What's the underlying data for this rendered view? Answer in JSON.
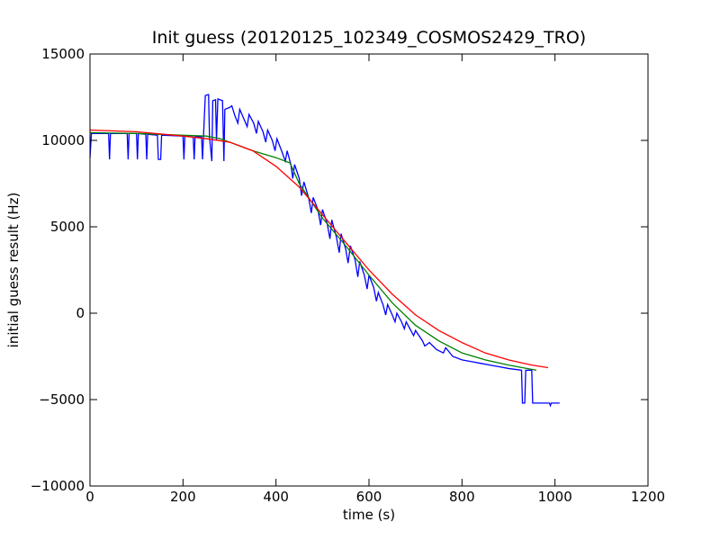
{
  "chart_data": {
    "type": "line",
    "title": "Init guess (20120125_102349_COSMOS2429_TRO)",
    "xlabel": "time (s)",
    "ylabel": "initial guess result (Hz)",
    "xlim": [
      0,
      1200
    ],
    "ylim": [
      -10000,
      15000
    ],
    "xticks": [
      0,
      200,
      400,
      600,
      800,
      1000,
      1200
    ],
    "yticks": [
      {
        "value": -10000,
        "label": "−10000"
      },
      {
        "value": -5000,
        "label": "−5000"
      },
      0,
      5000,
      10000,
      15000
    ],
    "series": [
      {
        "color": "#0000ff",
        "x": [
          0,
          3,
          40,
          42,
          44,
          80,
          82,
          84,
          100,
          102,
          104,
          120,
          122,
          124,
          145,
          147,
          152,
          154,
          200,
          202,
          204,
          222,
          224,
          226,
          240,
          242,
          244,
          248,
          255,
          257,
          262,
          264,
          270,
          272,
          275,
          285,
          288,
          290,
          300,
          305,
          312,
          318,
          322,
          330,
          338,
          342,
          352,
          358,
          362,
          372,
          378,
          382,
          392,
          398,
          402,
          412,
          420,
          424,
          432,
          436,
          440,
          450,
          455,
          460,
          470,
          476,
          480,
          490,
          496,
          500,
          510,
          516,
          520,
          530,
          536,
          540,
          550,
          555,
          560,
          570,
          576,
          580,
          590,
          596,
          600,
          610,
          616,
          620,
          630,
          636,
          640,
          650,
          656,
          660,
          670,
          676,
          680,
          690,
          696,
          700,
          715,
          720,
          730,
          745,
          760,
          765,
          780,
          800,
          820,
          840,
          860,
          880,
          900,
          928,
          930,
          935,
          937,
          950,
          952,
          988,
          990,
          992,
          1010
        ],
        "values": [
          9000,
          10400,
          10400,
          8900,
          10400,
          10400,
          8900,
          10400,
          10400,
          8900,
          10400,
          10350,
          8900,
          10350,
          10300,
          8900,
          8900,
          10300,
          10250,
          8900,
          10250,
          10200,
          8900,
          10200,
          10200,
          8900,
          10200,
          12600,
          12650,
          10200,
          8800,
          12300,
          12350,
          10000,
          12400,
          12300,
          8800,
          11800,
          11900,
          12000,
          11400,
          11000,
          11800,
          11300,
          10800,
          11500,
          11000,
          10400,
          11100,
          10500,
          9900,
          10600,
          10000,
          9400,
          10100,
          9400,
          8800,
          9400,
          8600,
          7800,
          8600,
          7800,
          6800,
          7600,
          6700,
          5800,
          6700,
          6000,
          5100,
          6000,
          5200,
          4300,
          5400,
          4400,
          3500,
          4600,
          3700,
          2900,
          3900,
          3100,
          2100,
          3000,
          2200,
          1400,
          2200,
          1500,
          700,
          1200,
          500,
          -100,
          500,
          -100,
          -500,
          0,
          -500,
          -900,
          -500,
          -1000,
          -1300,
          -1000,
          -1600,
          -1900,
          -1700,
          -2100,
          -2300,
          -2000,
          -2500,
          -2700,
          -2800,
          -2900,
          -3000,
          -3100,
          -3200,
          -3300,
          -5200,
          -5200,
          -3300,
          -3300,
          -5200,
          -5200,
          -5350,
          -5200,
          -5200
        ]
      },
      {
        "color": "#008000",
        "x": [
          0,
          100,
          200,
          250,
          280,
          300,
          350,
          400,
          430,
          450,
          500,
          550,
          600,
          650,
          700,
          750,
          800,
          850,
          900,
          960
        ],
        "values": [
          10450,
          10400,
          10300,
          10250,
          10100,
          9900,
          9400,
          9000,
          8700,
          7500,
          5500,
          3900,
          2200,
          600,
          -700,
          -1600,
          -2300,
          -2700,
          -3000,
          -3300
        ]
      },
      {
        "color": "#ff0000",
        "x": [
          0,
          100,
          200,
          250,
          300,
          350,
          400,
          450,
          500,
          550,
          600,
          650,
          700,
          750,
          800,
          850,
          900,
          950,
          985
        ],
        "values": [
          10600,
          10500,
          10250,
          10100,
          9900,
          9400,
          8500,
          7300,
          5700,
          4100,
          2500,
          1100,
          -100,
          -1000,
          -1700,
          -2300,
          -2700,
          -3000,
          -3150
        ]
      }
    ]
  }
}
